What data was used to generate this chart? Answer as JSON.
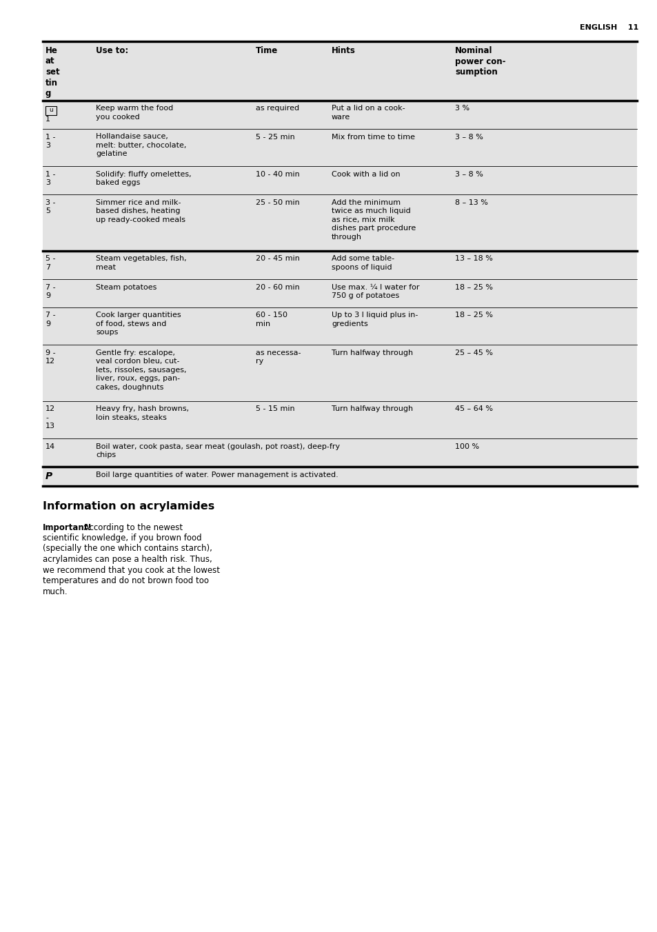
{
  "page_header": "ENGLISH    11",
  "table_bg": "#e3e3e3",
  "white_bg": "#ffffff",
  "col_headers": [
    "He\nat\nset\ntin\ng",
    "Use to:",
    "Time",
    "Hints",
    "Nominal\npower con-\nsumption"
  ],
  "rows": [
    {
      "setting": "⒤\n1",
      "use_to": "Keep warm the food\nyou cooked",
      "time": "as required",
      "hints": "Put a lid on a cook-\nware",
      "power": "3 %",
      "span": false
    },
    {
      "setting": "1 -\n3",
      "use_to": "Hollandaise sauce,\nmelt: butter, chocolate,\ngelatine",
      "time": "5 - 25 min",
      "hints": "Mix from time to time",
      "power": "3 – 8 %",
      "span": false
    },
    {
      "setting": "1 -\n3",
      "use_to": "Solidify: fluffy omelettes,\nbaked eggs",
      "time": "10 - 40 min",
      "hints": "Cook with a lid on",
      "power": "3 – 8 %",
      "span": false
    },
    {
      "setting": "3 -\n5",
      "use_to": "Simmer rice and milk-\nbased dishes, heating\nup ready-cooked meals",
      "time": "25 - 50 min",
      "hints": "Add the minimum\ntwice as much liquid\nas rice, mix milk\ndishes part procedure\nthrough",
      "power": "8 – 13 %",
      "span": false
    },
    {
      "setting": "5 -\n7",
      "use_to": "Steam vegetables, fish,\nmeat",
      "time": "20 - 45 min",
      "hints": "Add some table-\nspoons of liquid",
      "power": "13 – 18 %",
      "span": false
    },
    {
      "setting": "7 -\n9",
      "use_to": "Steam potatoes",
      "time": "20 - 60 min",
      "hints": "Use max. ¼ l water for\n750 g of potatoes",
      "power": "18 – 25 %",
      "span": false
    },
    {
      "setting": "7 -\n9",
      "use_to": "Cook larger quantities\nof food, stews and\nsoups",
      "time": "60 - 150\nmin",
      "hints": "Up to 3 l liquid plus in-\ngredients",
      "power": "18 – 25 %",
      "span": false
    },
    {
      "setting": "9 -\n12",
      "use_to": "Gentle fry: escalope,\nveal cordon bleu, cut-\nlets, rissoles, sausages,\nliver, roux, eggs, pan-\ncakes, doughnuts",
      "time": "as necessa-\nry",
      "hints": "Turn halfway through",
      "power": "25 – 45 %",
      "span": false
    },
    {
      "setting": "12\n-\n13",
      "use_to": "Heavy fry, hash browns,\nloin steaks, steaks",
      "time": "5 - 15 min",
      "hints": "Turn halfway through",
      "power": "45 – 64 %",
      "span": false
    },
    {
      "setting": "14",
      "use_to": "Boil water, cook pasta, sear meat (goulash, pot roast), deep-fry\nchips",
      "time": "",
      "hints": "",
      "power": "100 %",
      "span": true
    },
    {
      "setting": "P",
      "use_to": "Boil large quantities of water. Power management is activated.",
      "time": "",
      "hints": "",
      "power": "",
      "span": true
    }
  ],
  "thick_divider_after": [
    3,
    9
  ],
  "section_title": "Information on acrylamides",
  "body_bold": "Important!",
  "body_rest": " According to the newest scientific knowledge, if you brown food (specially the one which contains starch), acrylamides can pose a health risk. Thus, we recommend that you cook at the lowest temperatures and do not brown food too much.",
  "body_lines": [
    " According to the newest",
    "scientific knowledge, if you brown food",
    "(specially the one which contains starch),",
    "acrylamides can pose a health risk. Thus,",
    "we recommend that you cook at the lowest",
    "temperatures and do not brown food too",
    "much."
  ]
}
